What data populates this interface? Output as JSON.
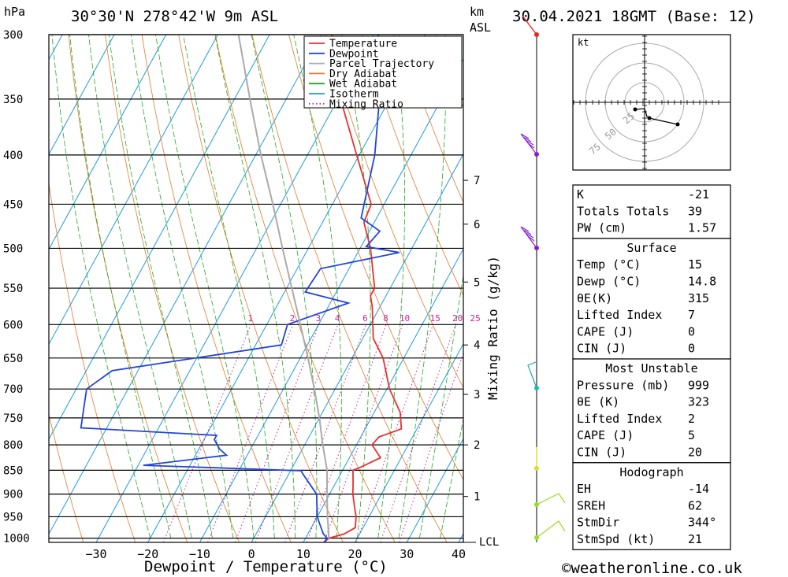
{
  "header": {
    "location": "30°30'N  278°42'W  9m  ASL",
    "datetime": "30.04.2021  18GMT  (Base: 12)",
    "hpa_label": "hPa",
    "km_label": "km",
    "asl_label": "ASL"
  },
  "footer": {
    "credit": "©weatheronline.co.uk"
  },
  "legend": [
    {
      "label": "Temperature",
      "color": "#e8312f",
      "style": "solid"
    },
    {
      "label": "Dewpoint",
      "color": "#2244dd",
      "style": "solid"
    },
    {
      "label": "Parcel Trajectory",
      "color": "#aaaaaa",
      "style": "solid"
    },
    {
      "label": "Dry Adiabat",
      "color": "#e07b2a",
      "style": "solid"
    },
    {
      "label": "Wet Adiabat",
      "color": "#22aa22",
      "style": "solid"
    },
    {
      "label": "Isotherm",
      "color": "#1e9be0",
      "style": "solid"
    },
    {
      "label": "Mixing Ratio",
      "color": "#cc2299",
      "style": "dotted"
    }
  ],
  "chart_data": {
    "type": "line",
    "title": "30°30'N 278°42'W 9m ASL — 30.04.2021 18GMT (Base: 12)",
    "xlabel": "Dewpoint / Temperature (°C)",
    "ylabel": "hPa",
    "xlim": [
      -40,
      40
    ],
    "ylim": [
      1010,
      300
    ],
    "x_ticks": [
      -30,
      -20,
      -10,
      0,
      10,
      20,
      30,
      40
    ],
    "pressure_levels": [
      300,
      350,
      400,
      450,
      500,
      550,
      600,
      650,
      700,
      750,
      800,
      850,
      900,
      950,
      1000
    ],
    "km_ticks": [
      {
        "label": "7",
        "p": 425
      },
      {
        "label": "6",
        "p": 472
      },
      {
        "label": "5",
        "p": 542
      },
      {
        "label": "4",
        "p": 630
      },
      {
        "label": "3",
        "p": 709
      },
      {
        "label": "2",
        "p": 800
      },
      {
        "label": "1",
        "p": 905
      },
      {
        "label": "LCL",
        "p": 1008
      }
    ],
    "mixing_ratio_label": "Mixing Ratio (g/kg)",
    "mixing_ratio_values": [
      1,
      2,
      3,
      4,
      6,
      8,
      10,
      15,
      20,
      25
    ],
    "series": [
      {
        "name": "Temperature",
        "color": "#e8312f",
        "points": [
          [
            1010,
            14
          ],
          [
            1000,
            14.5
          ],
          [
            990,
            17
          ],
          [
            975,
            18.5
          ],
          [
            950,
            17.5
          ],
          [
            925,
            16
          ],
          [
            900,
            14.5
          ],
          [
            875,
            13.3
          ],
          [
            850,
            12
          ],
          [
            845,
            13
          ],
          [
            825,
            16
          ],
          [
            800,
            13
          ],
          [
            785,
            13.5
          ],
          [
            770,
            17
          ],
          [
            740,
            15
          ],
          [
            700,
            10.5
          ],
          [
            650,
            6
          ],
          [
            620,
            2
          ],
          [
            600,
            0.5
          ],
          [
            575,
            -1.5
          ],
          [
            560,
            -3
          ],
          [
            550,
            -3
          ],
          [
            500,
            -8
          ],
          [
            470,
            -12
          ],
          [
            450,
            -12.5
          ],
          [
            400,
            -20.5
          ],
          [
            350,
            -29.5
          ],
          [
            310,
            -36
          ],
          [
            300,
            -38
          ]
        ]
      },
      {
        "name": "Dewpoint",
        "color": "#2244dd",
        "points": [
          [
            1010,
            14
          ],
          [
            1000,
            14.2
          ],
          [
            990,
            13
          ],
          [
            970,
            11.5
          ],
          [
            950,
            10
          ],
          [
            900,
            7.5
          ],
          [
            860,
            3
          ],
          [
            851,
            2
          ],
          [
            840,
            -29
          ],
          [
            820,
            -14
          ],
          [
            808,
            -16
          ],
          [
            790,
            -18
          ],
          [
            782,
            -18
          ],
          [
            768,
            -45
          ],
          [
            700,
            -48
          ],
          [
            670,
            -45
          ],
          [
            630,
            -15
          ],
          [
            600,
            -16
          ],
          [
            570,
            -6.5
          ],
          [
            555,
            -16
          ],
          [
            525,
            -15.5
          ],
          [
            505,
            -2
          ],
          [
            498,
            -9
          ],
          [
            480,
            -8
          ],
          [
            465,
            -13
          ],
          [
            400,
            -17
          ],
          [
            350,
            -22
          ],
          [
            300,
            -29
          ]
        ]
      },
      {
        "name": "Parcel Trajectory",
        "color": "#aaaaaa",
        "points": [
          [
            1000,
            14.5
          ],
          [
            950,
            12
          ],
          [
            900,
            9.5
          ],
          [
            850,
            7
          ],
          [
            800,
            3.5
          ],
          [
            750,
            0
          ],
          [
            700,
            -4
          ],
          [
            650,
            -8.5
          ],
          [
            600,
            -13.5
          ],
          [
            550,
            -19
          ],
          [
            500,
            -25
          ],
          [
            450,
            -31.5
          ],
          [
            400,
            -39
          ],
          [
            350,
            -47
          ],
          [
            300,
            -56
          ]
        ]
      }
    ]
  },
  "hodograph": {
    "unit_label": "kt",
    "ring_labels": [
      "25",
      "50",
      "75"
    ]
  },
  "indices": {
    "general": [
      {
        "label": "K",
        "value": "-21"
      },
      {
        "label": "Totals Totals",
        "value": "39"
      },
      {
        "label": "PW (cm)",
        "value": "1.57"
      }
    ],
    "surface_title": "Surface",
    "surface": [
      {
        "label": "Temp (°C)",
        "value": "15"
      },
      {
        "label": "Dewp (°C)",
        "value": "14.8"
      },
      {
        "label": "θE(K)",
        "value": "315"
      },
      {
        "label": "Lifted Index",
        "value": "7"
      },
      {
        "label": "CAPE (J)",
        "value": "0"
      },
      {
        "label": "CIN (J)",
        "value": "0"
      }
    ],
    "unstable_title": "Most Unstable",
    "unstable": [
      {
        "label": "Pressure (mb)",
        "value": "999"
      },
      {
        "label": "θE (K)",
        "value": "323"
      },
      {
        "label": "Lifted Index",
        "value": "2"
      },
      {
        "label": "CAPE (J)",
        "value": "5"
      },
      {
        "label": "CIN (J)",
        "value": "20"
      }
    ],
    "hodo_title": "Hodograph",
    "hodo": [
      {
        "label": "EH",
        "value": "-14"
      },
      {
        "label": "SREH",
        "value": "62"
      },
      {
        "label": "StmDir",
        "value": "344°"
      },
      {
        "label": "StmSpd (kt)",
        "value": "21"
      }
    ]
  }
}
